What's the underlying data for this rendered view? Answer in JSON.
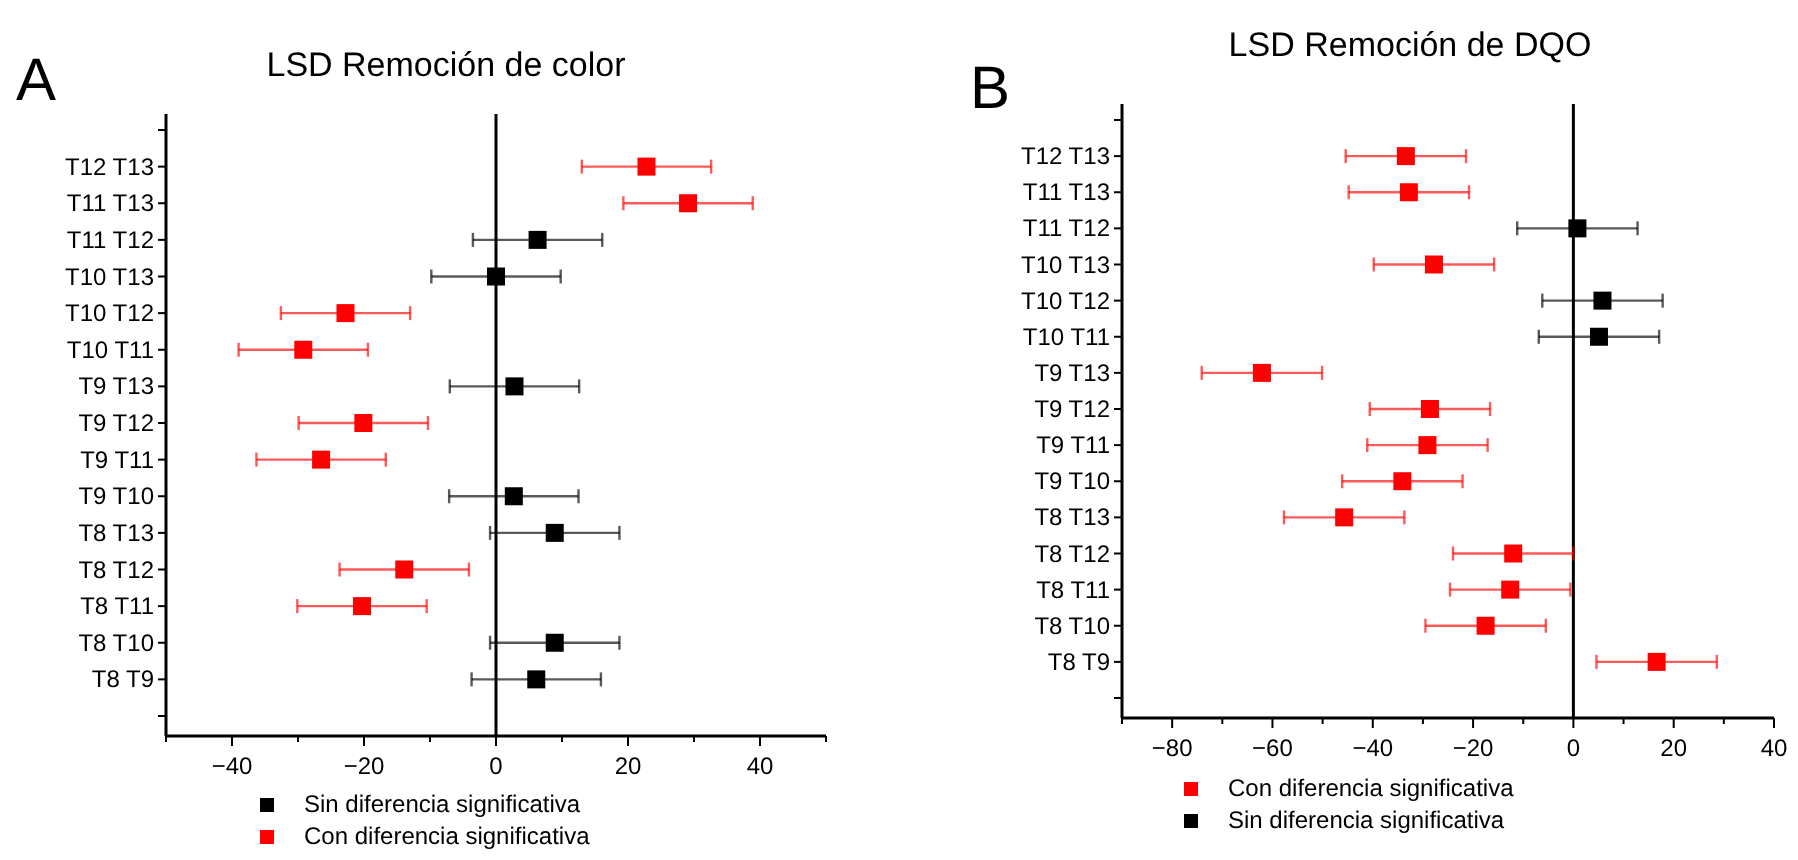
{
  "chart_data": [
    {
      "type": "scatter",
      "title": "LSD Remoción de color",
      "annotations": [
        "A"
      ],
      "orientation": "horizontal",
      "marker": "square",
      "legend": "bottom",
      "categories": [
        null,
        "T12 T13",
        "T11 T13",
        "T11 T12",
        "T10 T13",
        "T10 T12",
        "T10 T11",
        "T9 T13",
        "T9 T12",
        "T9 T11",
        "T9 T10",
        "T8 T13",
        "T8 T12",
        "T8 T11",
        "T8 T10",
        "T8 T9",
        null
      ],
      "xlim": [
        -50,
        50
      ],
      "xticks": [
        {
          "value": -50,
          "label": null
        },
        -40,
        {
          "value": -30,
          "label": null
        },
        -20,
        {
          "value": -10,
          "label": null
        },
        0,
        {
          "value": 10,
          "label": null
        },
        20,
        {
          "value": 30,
          "label": null
        },
        40,
        {
          "value": 50,
          "label": null
        }
      ],
      "ref_lines": [
        {
          "axis": "x",
          "value": 0
        }
      ],
      "series": [
        {
          "name": "Sin diferencia significativa",
          "color": "#000000",
          "values": [
            null,
            null,
            null,
            6.3,
            0,
            null,
            null,
            2.8,
            null,
            null,
            2.7,
            8.9,
            null,
            null,
            8.9,
            6.1,
            null
          ],
          "errors": [
            null,
            null,
            null,
            9.8,
            9.8,
            null,
            null,
            9.8,
            null,
            null,
            9.8,
            9.8,
            null,
            null,
            9.8,
            9.8,
            null
          ]
        },
        {
          "name": "Con diferencia significativa",
          "color": "#ff0000",
          "values": [
            null,
            22.8,
            29.1,
            null,
            null,
            -22.8,
            -29.2,
            null,
            -20.1,
            -26.5,
            null,
            null,
            -13.9,
            -20.3,
            null,
            null,
            null
          ],
          "errors": [
            null,
            9.8,
            9.8,
            null,
            null,
            9.8,
            9.8,
            null,
            9.8,
            9.8,
            null,
            null,
            9.8,
            9.8,
            null,
            null,
            null
          ]
        }
      ]
    },
    {
      "type": "scatter",
      "title": "LSD Remoción de DQO",
      "annotations": [
        "B"
      ],
      "orientation": "horizontal",
      "marker": "square",
      "legend": "bottom",
      "categories": [
        null,
        "T12 T13",
        "T11 T13",
        "T11 T12",
        "T10 T13",
        "T10 T12",
        "T10 T11",
        "T9 T13",
        "T9 T12",
        "T9 T11",
        "T9 T10",
        "T8 T13",
        "T8 T12",
        "T8 T11",
        "T8 T10",
        "T8 T9",
        null
      ],
      "xlim": [
        -90,
        40
      ],
      "xticks": [
        {
          "value": -90,
          "label": null
        },
        -80,
        {
          "value": -70,
          "label": null
        },
        -60,
        {
          "value": -50,
          "label": null
        },
        -40,
        {
          "value": -30,
          "label": null
        },
        -20,
        {
          "value": -10,
          "label": null
        },
        0,
        {
          "value": 10,
          "label": null
        },
        20,
        {
          "value": 30,
          "label": null
        },
        40
      ],
      "ref_lines": [
        {
          "axis": "x",
          "value": 0
        }
      ],
      "series": [
        {
          "name": "Con diferencia significativa",
          "color": "#ff0000",
          "values": [
            null,
            -33.4,
            -32.8,
            null,
            -27.8,
            null,
            null,
            -62.1,
            -28.6,
            -29.1,
            -34.1,
            -45.7,
            -12.0,
            -12.6,
            -17.5,
            16.6,
            null
          ],
          "errors": [
            null,
            12,
            12,
            null,
            12,
            null,
            null,
            12,
            12,
            12,
            12,
            12,
            12,
            12,
            12,
            12,
            null
          ]
        },
        {
          "name": "Sin diferencia significativa",
          "color": "#000000",
          "values": [
            null,
            null,
            null,
            0.8,
            null,
            5.8,
            5.1,
            null,
            null,
            null,
            null,
            null,
            null,
            null,
            null,
            null,
            null
          ],
          "errors": [
            null,
            null,
            null,
            12,
            null,
            12,
            12,
            null,
            null,
            null,
            null,
            null,
            null,
            null,
            null,
            null,
            null
          ]
        }
      ]
    }
  ]
}
